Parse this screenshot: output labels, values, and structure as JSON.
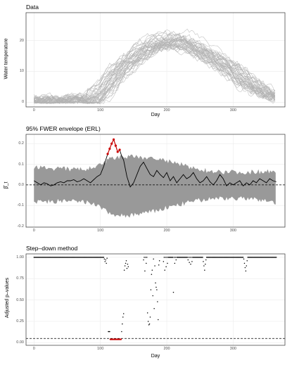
{
  "chart_data": [
    {
      "type": "line",
      "title": "Data",
      "xlabel": "Day",
      "ylabel": "Water temperature",
      "xlim": [
        -12,
        378
      ],
      "ylim": [
        -1.5,
        29
      ],
      "x_ticks": [
        0,
        100,
        200,
        300
      ],
      "y_ticks": [
        0,
        10,
        20
      ],
      "grid": true,
      "n_series": 40,
      "series_color": "#b3b3b3",
      "mean_curve": {
        "x": [
          0,
          15,
          30,
          45,
          60,
          75,
          90,
          100,
          110,
          120,
          130,
          140,
          150,
          160,
          170,
          180,
          190,
          200,
          210,
          220,
          230,
          240,
          250,
          260,
          270,
          280,
          290,
          300,
          310,
          320,
          330,
          340,
          350,
          365
        ],
        "y": [
          0.8,
          0.5,
          0.5,
          0.5,
          0.5,
          0.6,
          1.0,
          2.0,
          4.5,
          7.5,
          10.0,
          12.0,
          14.0,
          15.5,
          17.0,
          18.2,
          19.0,
          19.6,
          20.0,
          19.8,
          19.2,
          18.3,
          17.0,
          16.0,
          14.8,
          13.5,
          12.2,
          10.6,
          9.0,
          7.5,
          6.0,
          4.5,
          3.2,
          1.8
        ]
      },
      "spread": 3.0
    },
    {
      "type": "line",
      "title": "95% FWER envelope (ERL)",
      "xlabel": "",
      "ylabel": "β̂_t",
      "xlim": [
        -12,
        378
      ],
      "ylim": [
        -0.205,
        0.245
      ],
      "x_ticks": [
        0,
        100,
        200,
        300
      ],
      "y_ticks": [
        -0.2,
        -0.1,
        0.0,
        0.1,
        0.2
      ],
      "grid": true,
      "reference_line": 0,
      "envelope_color": "#999999",
      "envelope": {
        "x": [
          0,
          30,
          60,
          90,
          100,
          110,
          120,
          130,
          140,
          150,
          160,
          170,
          180,
          190,
          200,
          220,
          240,
          260,
          280,
          300,
          330,
          365
        ],
        "upper": [
          0.085,
          0.08,
          0.075,
          0.08,
          0.095,
          0.12,
          0.13,
          0.135,
          0.135,
          0.135,
          0.133,
          0.13,
          0.13,
          0.125,
          0.115,
          0.1,
          0.08,
          0.07,
          0.065,
          0.062,
          0.062,
          0.07
        ],
        "lower": [
          -0.085,
          -0.08,
          -0.08,
          -0.09,
          -0.11,
          -0.13,
          -0.145,
          -0.15,
          -0.15,
          -0.145,
          -0.14,
          -0.135,
          -0.13,
          -0.12,
          -0.11,
          -0.095,
          -0.08,
          -0.07,
          -0.065,
          -0.065,
          -0.07,
          -0.085
        ]
      },
      "series": [
        {
          "name": "estimate",
          "color": "#000000",
          "x": [
            0,
            5,
            10,
            15,
            20,
            25,
            30,
            35,
            40,
            45,
            50,
            55,
            60,
            65,
            70,
            75,
            80,
            85,
            90,
            95,
            100,
            105,
            108,
            111,
            114,
            117,
            120,
            123,
            126,
            129,
            132,
            135,
            140,
            145,
            150,
            155,
            160,
            165,
            170,
            175,
            180,
            185,
            190,
            195,
            200,
            205,
            210,
            215,
            220,
            225,
            230,
            235,
            240,
            245,
            250,
            255,
            260,
            265,
            270,
            275,
            280,
            285,
            290,
            295,
            300,
            305,
            310,
            315,
            320,
            325,
            330,
            335,
            340,
            345,
            350,
            355,
            360,
            365
          ],
          "y": [
            0.02,
            0.01,
            0.0,
            0.01,
            0.005,
            -0.005,
            0.0,
            0.01,
            0.015,
            0.01,
            0.02,
            0.02,
            0.025,
            0.015,
            0.02,
            0.03,
            0.02,
            0.01,
            0.025,
            0.04,
            0.05,
            0.09,
            0.12,
            0.15,
            0.175,
            0.2,
            0.22,
            0.19,
            0.16,
            0.17,
            0.14,
            0.12,
            0.04,
            -0.01,
            0.01,
            0.05,
            0.09,
            0.11,
            0.08,
            0.05,
            0.04,
            0.07,
            0.05,
            0.035,
            0.06,
            0.02,
            0.04,
            0.01,
            0.03,
            0.05,
            0.03,
            0.04,
            0.06,
            0.03,
            0.01,
            0.02,
            0.04,
            0.015,
            0.0,
            0.02,
            0.05,
            0.03,
            -0.005,
            0.01,
            0.0,
            0.01,
            0.02,
            -0.005,
            0.01,
            0.0,
            0.02,
            0.01,
            0.03,
            0.02,
            0.01,
            0.03,
            0.02,
            0.015
          ]
        }
      ],
      "highlight": {
        "color": "#cc0000",
        "x": [
          111,
          114,
          117,
          120,
          123,
          126,
          129
        ],
        "y": [
          0.15,
          0.175,
          0.2,
          0.22,
          0.19,
          0.16,
          0.17
        ]
      }
    },
    {
      "type": "scatter",
      "title": "Step–down method",
      "xlabel": "Day",
      "ylabel": "Adjusted p–values",
      "xlim": [
        -12,
        378
      ],
      "ylim": [
        -0.03,
        1.04
      ],
      "x_ticks": [
        0,
        100,
        200,
        300
      ],
      "y_ticks": [
        0.0,
        0.25,
        0.5,
        0.75,
        1.0
      ],
      "y_tick_labels": [
        "0.00",
        "0.25",
        "0.50",
        "0.75",
        "1.00"
      ],
      "grid": true,
      "reference_line": 0.05,
      "point_color": "#000000",
      "highlight_color": "#cc0000",
      "significant_days": [
        115,
        116,
        117,
        118,
        119,
        120,
        121,
        122,
        123,
        124,
        125,
        126,
        127,
        128,
        129,
        130,
        131
      ],
      "significant_value": 0.04,
      "points": [
        [
          106,
          0.98
        ],
        [
          107,
          0.95
        ],
        [
          108,
          0.97
        ],
        [
          109,
          0.93
        ],
        [
          110,
          0.99
        ],
        [
          112,
          0.13
        ],
        [
          113,
          0.13
        ],
        [
          114,
          0.13
        ],
        [
          132,
          0.13
        ],
        [
          133,
          0.22
        ],
        [
          134,
          0.3
        ],
        [
          135,
          0.34
        ],
        [
          136,
          0.85
        ],
        [
          137,
          0.9
        ],
        [
          138,
          0.93
        ],
        [
          139,
          0.96
        ],
        [
          140,
          0.87
        ],
        [
          141,
          0.92
        ],
        [
          142,
          0.89
        ],
        [
          165,
          0.97
        ],
        [
          167,
          0.84
        ],
        [
          169,
          0.93
        ],
        [
          171,
          0.35
        ],
        [
          172,
          0.25
        ],
        [
          173,
          0.21
        ],
        [
          174,
          0.22
        ],
        [
          175,
          0.3
        ],
        [
          176,
          0.62
        ],
        [
          177,
          0.8
        ],
        [
          178,
          0.85
        ],
        [
          179,
          0.55
        ],
        [
          180,
          0.98
        ],
        [
          181,
          0.4
        ],
        [
          182,
          0.9
        ],
        [
          183,
          0.7
        ],
        [
          184,
          0.65
        ],
        [
          185,
          0.62
        ],
        [
          186,
          0.48
        ],
        [
          187,
          0.27
        ],
        [
          188,
          0.91
        ],
        [
          189,
          0.96
        ],
        [
          195,
          0.95
        ],
        [
          197,
          0.85
        ],
        [
          199,
          0.89
        ],
        [
          201,
          0.93
        ],
        [
          210,
          0.59
        ],
        [
          212,
          0.93
        ],
        [
          214,
          0.97
        ],
        [
          232,
          0.97
        ],
        [
          234,
          0.94
        ],
        [
          236,
          0.92
        ],
        [
          238,
          0.95
        ],
        [
          255,
          0.95
        ],
        [
          256,
          0.9
        ],
        [
          257,
          0.85
        ],
        [
          258,
          0.92
        ],
        [
          259,
          0.97
        ],
        [
          316,
          0.98
        ],
        [
          317,
          0.93
        ],
        [
          318,
          0.88
        ],
        [
          319,
          0.84
        ],
        [
          320,
          0.9
        ],
        [
          321,
          0.96
        ]
      ]
    }
  ]
}
